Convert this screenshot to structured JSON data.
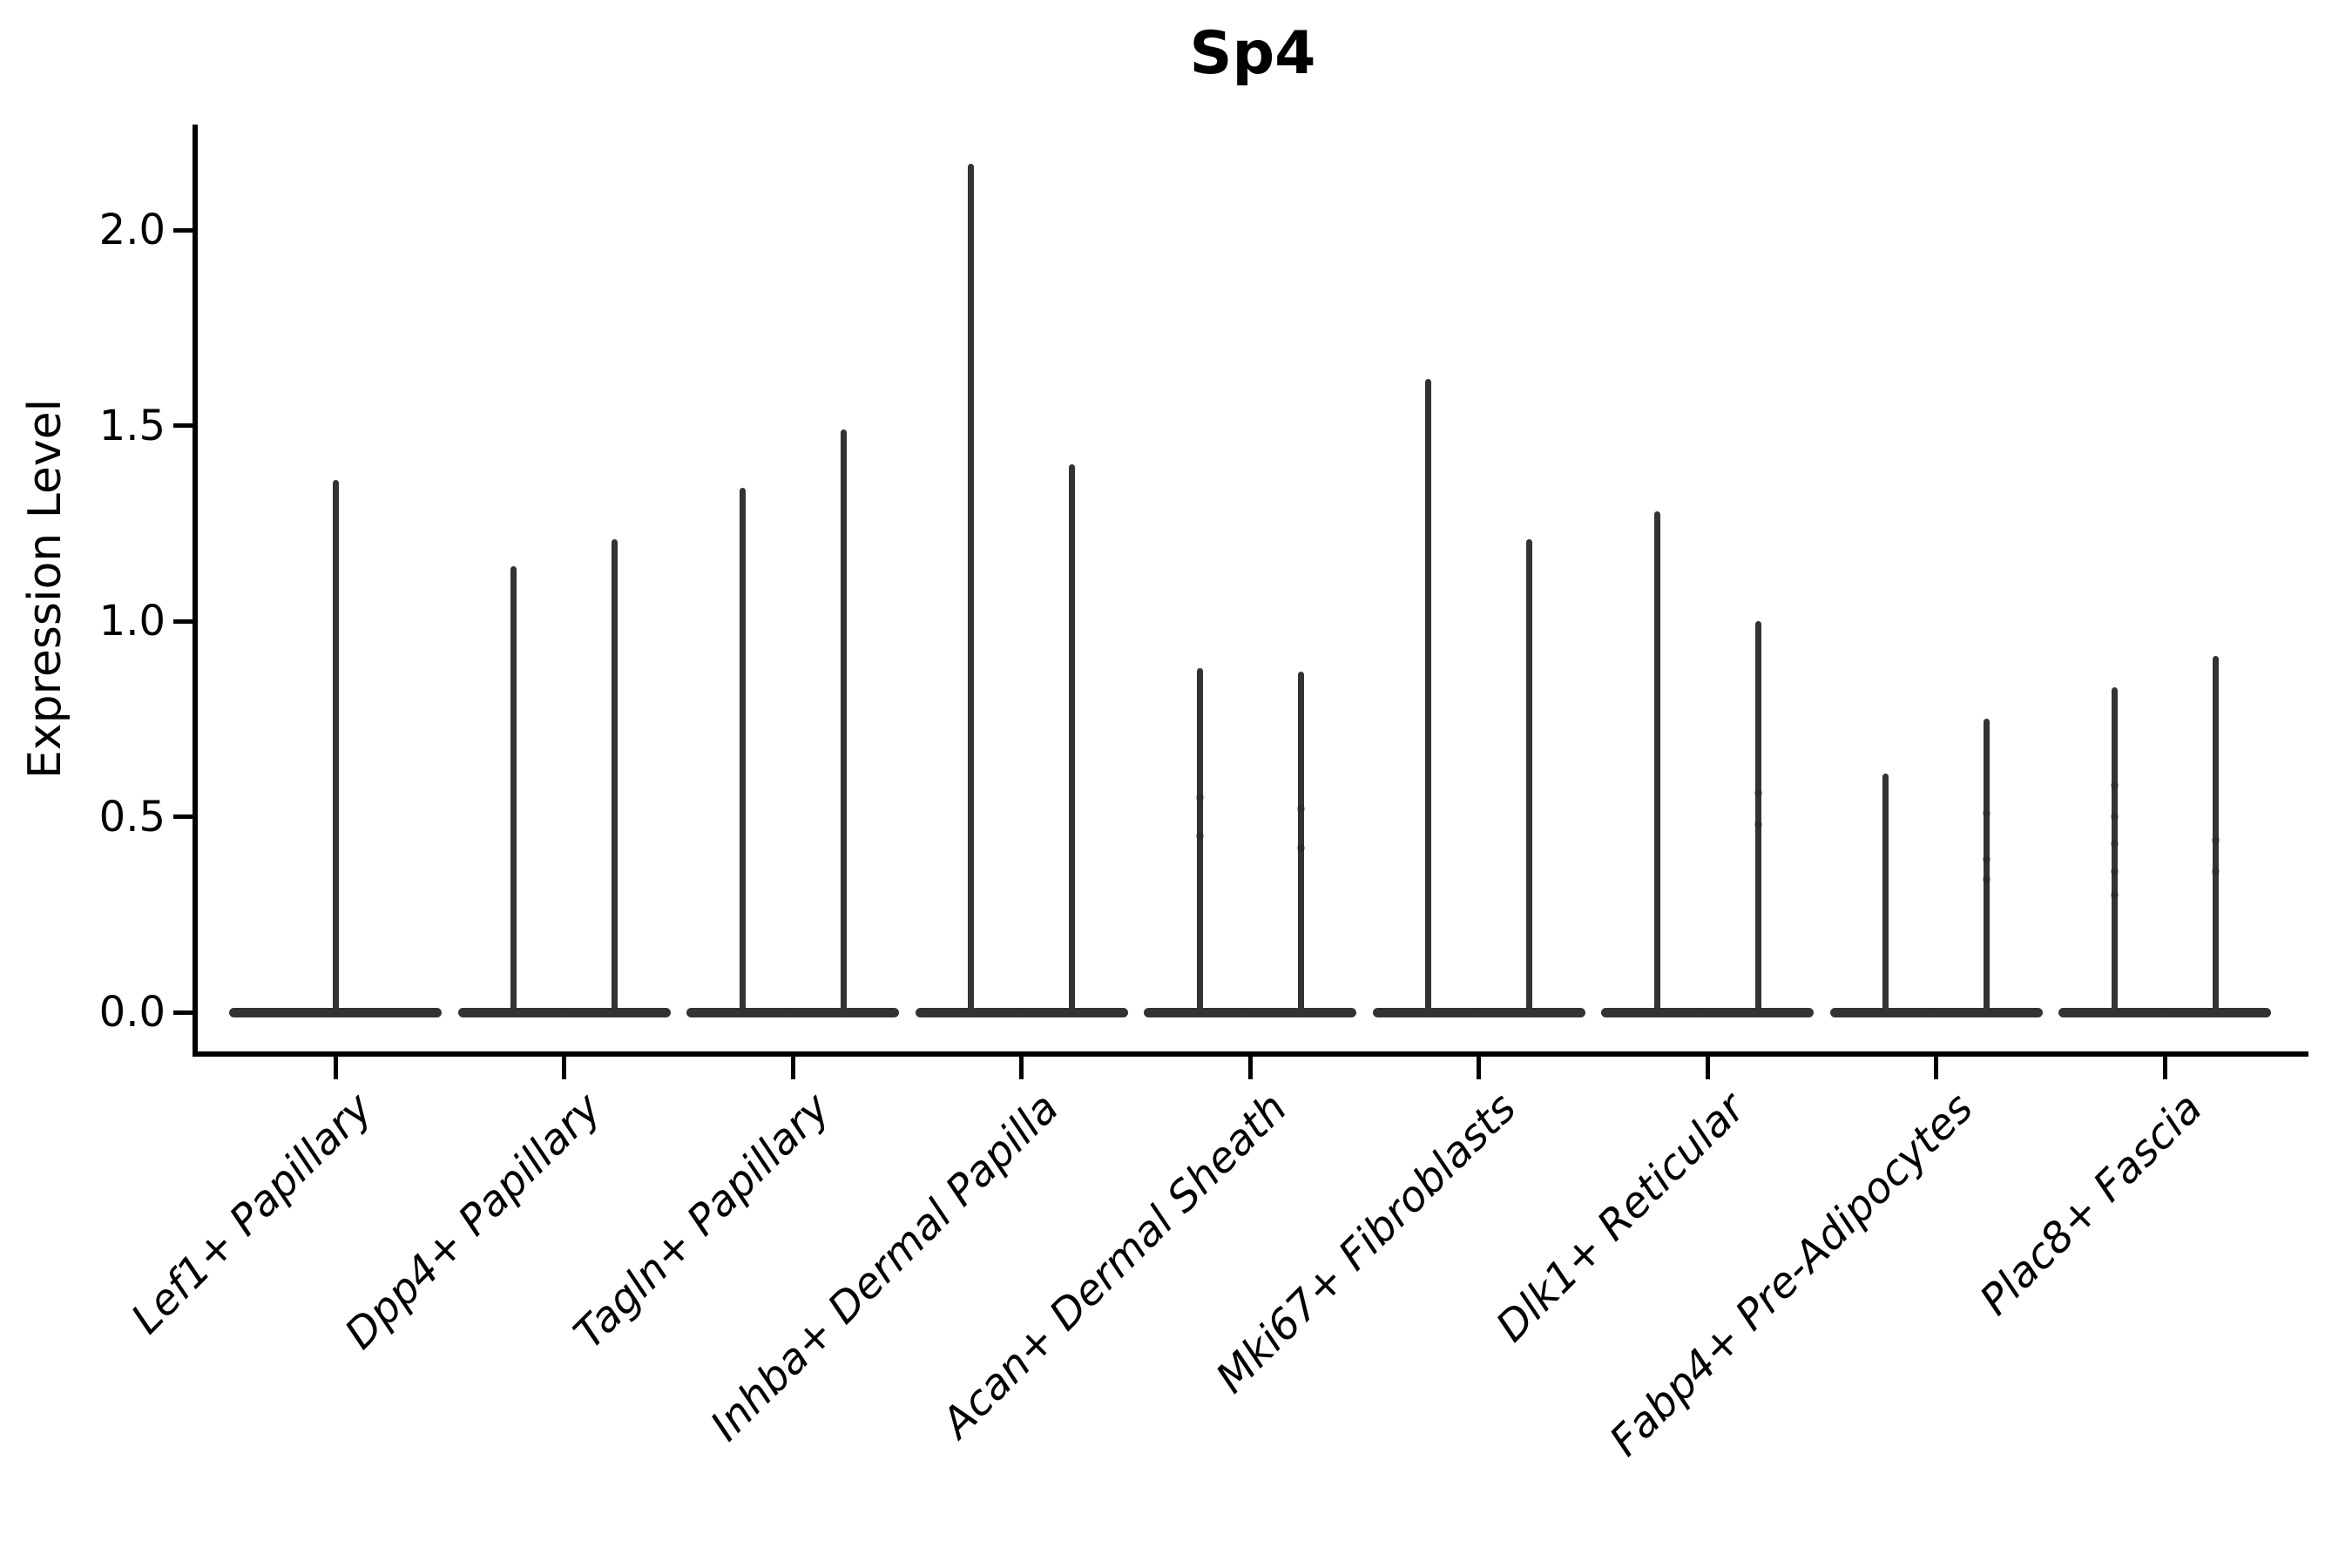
{
  "figure": {
    "title": "Sp4",
    "background_color": "#ffffff"
  },
  "axes": {
    "ylabel": "Expression Level",
    "ytick_labels": [
      "0.0",
      "0.5",
      "1.0",
      "1.5",
      "2.0"
    ],
    "xtick_rotation_deg": 45,
    "spine_color": "#000000",
    "violin_color": "#333333",
    "point_color": "#262626"
  },
  "chart_data": {
    "type": "violin",
    "title": "Sp4",
    "xlabel": "",
    "ylabel": "Expression Level",
    "ylim": [
      -0.11,
      2.28
    ],
    "yticks": [
      0.0,
      0.5,
      1.0,
      1.5,
      2.0
    ],
    "grid": false,
    "legend_position": "none",
    "categories": [
      "Lef1+ Papillary",
      "Dpp4+ Papillary",
      "Tagln+ Papillary",
      "Inhba+ Dermal Papilla",
      "Acan+ Dermal Sheath",
      "Mki67+ Fibroblasts",
      "Dlk1+ Reticular",
      "Fabp4+ Pre-Adipocytes",
      "Plac8+ Fascia"
    ],
    "violins": [
      {
        "category": "Lef1+ Papillary",
        "groups": [
          {
            "max": 1.36,
            "points": []
          }
        ]
      },
      {
        "category": "Dpp4+ Papillary",
        "groups": [
          {
            "max": 1.14,
            "points": []
          },
          {
            "max": 1.21,
            "points": []
          }
        ]
      },
      {
        "category": "Tagln+ Papillary",
        "groups": [
          {
            "max": 1.34,
            "points": []
          },
          {
            "max": 1.49,
            "points": []
          }
        ]
      },
      {
        "category": "Inhba+ Dermal Papilla",
        "groups": [
          {
            "max": 2.17,
            "points": []
          },
          {
            "max": 1.4,
            "points": []
          }
        ]
      },
      {
        "category": "Acan+ Dermal Sheath",
        "groups": [
          {
            "max": 0.88,
            "points": [
              0.45,
              0.55
            ]
          },
          {
            "max": 0.87,
            "points": [
              0.42,
              0.52
            ]
          }
        ]
      },
      {
        "category": "Mki67+ Fibroblasts",
        "groups": [
          {
            "max": 1.62,
            "points": []
          },
          {
            "max": 1.21,
            "points": []
          }
        ]
      },
      {
        "category": "Dlk1+ Reticular",
        "groups": [
          {
            "max": 1.28,
            "points": []
          },
          {
            "max": 1.0,
            "points": [
              0.48,
              0.56
            ]
          }
        ]
      },
      {
        "category": "Fabp4+ Pre-Adipocytes",
        "groups": [
          {
            "max": 0.61,
            "points": []
          },
          {
            "max": 0.75,
            "points": [
              0.34,
              0.39,
              0.51
            ]
          }
        ]
      },
      {
        "category": "Plac8+ Fascia",
        "groups": [
          {
            "max": 0.83,
            "points": [
              0.3,
              0.36,
              0.43,
              0.5,
              0.58
            ]
          },
          {
            "max": 0.91,
            "points": [
              0.36,
              0.44
            ]
          }
        ]
      }
    ]
  }
}
